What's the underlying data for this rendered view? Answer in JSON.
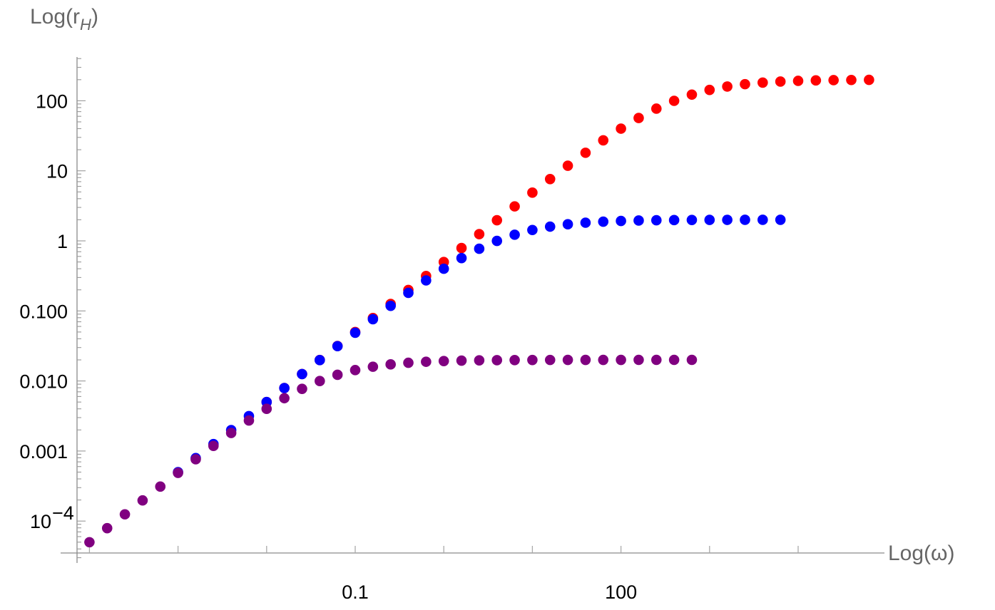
{
  "chart_data": {
    "type": "scatter",
    "title": "",
    "xlabel": "Log(ω)",
    "ylabel_main": "Log(r",
    "ylabel_sub": "H",
    "ylabel_close": ")",
    "x_scale": "log",
    "y_scale": "log",
    "xlim": [
      7.16e-05,
      93000
    ],
    "ylim": [
      3.55e-05,
      447
    ],
    "grid": false,
    "x_ticks": [
      {
        "value": 0.1,
        "label": "0.1"
      },
      {
        "value": 100,
        "label": "100"
      }
    ],
    "y_ticks": [
      {
        "value": 100,
        "label": "100"
      },
      {
        "value": 10,
        "label": "10"
      },
      {
        "value": 1,
        "label": "1"
      },
      {
        "value": 0.1,
        "label": "0.100"
      },
      {
        "value": 0.01,
        "label": "0.010"
      },
      {
        "value": 0.001,
        "label": "0.001"
      },
      {
        "value": 0.0001,
        "label": "10",
        "sup": "−4"
      }
    ],
    "series": [
      {
        "color": "#ff0000",
        "x": [
          0.01,
          0.01585,
          0.02512,
          0.03981,
          0.0631,
          0.1,
          0.1585,
          0.2512,
          0.3981,
          0.631,
          1,
          1.585,
          2.512,
          3.981,
          6.31,
          10,
          15.85,
          25.12,
          39.81,
          63.1,
          100,
          158.5,
          251.2,
          398.1,
          631,
          1000,
          1585,
          2512,
          3981,
          6310,
          10000,
          15850,
          25120,
          39810,
          63100
        ],
        "y": [
          0.005,
          0.00792,
          0.01256,
          0.0199,
          0.03155,
          0.05,
          0.0792,
          0.1256,
          0.199,
          0.315,
          0.4988,
          0.7894,
          1.248,
          1.971,
          3.106,
          4.878,
          7.62,
          11.82,
          18.1,
          27.25,
          40,
          56.77,
          77.15,
          99.77,
          122.4,
          142.9,
          159.7,
          172.5,
          181.7,
          188,
          192.3,
          195.2,
          196.9,
          198,
          198.7
        ]
      },
      {
        "color": "#0000ff",
        "x": [
          0.001,
          0.001585,
          0.002512,
          0.003981,
          0.00631,
          0.01,
          0.01585,
          0.02512,
          0.03981,
          0.0631,
          0.1,
          0.1585,
          0.2512,
          0.3981,
          0.631,
          1,
          1.585,
          2.512,
          3.981,
          6.31,
          10,
          15.85,
          25.12,
          39.81,
          63.1,
          100,
          158.5,
          251.2,
          398.1,
          631,
          1000,
          1585,
          2512,
          3981,
          6310
        ],
        "y": [
          0.0005,
          0.000792,
          0.001256,
          0.00199,
          0.00315,
          0.005,
          0.00792,
          0.01255,
          0.01985,
          0.0314,
          0.0488,
          0.0762,
          0.1182,
          0.181,
          0.2725,
          0.4,
          0.5677,
          0.7715,
          0.9977,
          1.224,
          1.429,
          1.597,
          1.725,
          1.817,
          1.88,
          1.923,
          1.952,
          1.969,
          1.98,
          1.987,
          1.992,
          1.995,
          1.997,
          1.998,
          1.999
        ]
      },
      {
        "color": "#800080",
        "x": [
          0.0001,
          0.0001585,
          0.0002512,
          0.0003981,
          0.000631,
          0.001,
          0.001585,
          0.002512,
          0.003981,
          0.00631,
          0.01,
          0.01585,
          0.02512,
          0.03981,
          0.0631,
          0.1,
          0.1585,
          0.2512,
          0.3981,
          0.631,
          1,
          1.585,
          2.512,
          3.981,
          6.31,
          10,
          15.85,
          25.12,
          39.81,
          63.1,
          100,
          158.5,
          251.2,
          398.1,
          631
        ],
        "y": [
          4.99e-05,
          7.92e-05,
          0.0001248,
          0.0001971,
          0.0003106,
          0.0004878,
          0.000762,
          0.001182,
          0.00181,
          0.002725,
          0.004,
          0.005677,
          0.007715,
          0.009977,
          0.01224,
          0.01429,
          0.01597,
          0.01725,
          0.01817,
          0.0188,
          0.01923,
          0.01952,
          0.01969,
          0.0198,
          0.01987,
          0.01992,
          0.01995,
          0.01997,
          0.01998,
          0.01999,
          0.01999,
          0.02,
          0.02,
          0.02,
          0.02
        ]
      }
    ]
  }
}
